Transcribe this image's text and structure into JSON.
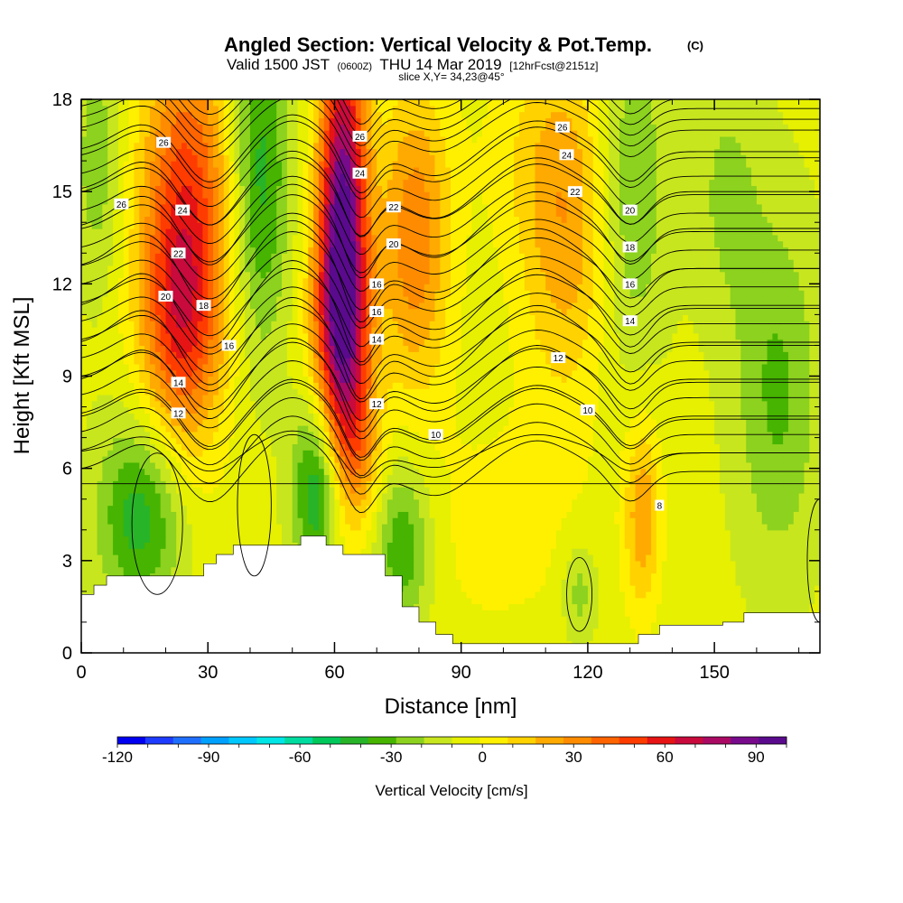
{
  "titles": {
    "main": "Angled Section: Vertical Velocity & Pot.Temp.",
    "main_badge": "(C)",
    "valid_prefix": "Valid 1500 JST",
    "valid_utc": "(0600Z)",
    "valid_date": "THU 14 Mar 2019",
    "valid_fcst": "[12hrFcst@2151z]",
    "slice": "slice X,Y= 34,23@45°"
  },
  "chart_data": {
    "type": "heatmap",
    "description_of_fields": "filled: vertical velocity (cm/s); contours: potential temperature (C)",
    "xlabel": "Distance [nm]",
    "ylabel": "Height [Kft MSL]",
    "xlim": [
      0,
      175
    ],
    "ylim": [
      0,
      18
    ],
    "x_ticks": [
      0,
      30,
      60,
      90,
      120,
      150
    ],
    "x_tick_labels": [
      "0",
      "30",
      "60",
      "90",
      "120",
      "150"
    ],
    "y_ticks": [
      0,
      3,
      6,
      9,
      12,
      15,
      18
    ],
    "y_tick_labels": [
      "0",
      "3",
      "6",
      "9",
      "12",
      "15",
      "18"
    ],
    "colorbar": {
      "label": "Vertical Velocity [cm/s]",
      "min": -120,
      "max": 100,
      "step": 10,
      "tick_values": [
        -120,
        -90,
        -60,
        -30,
        0,
        30,
        60,
        90
      ],
      "tick_labels": [
        "-120",
        "-90",
        "-60",
        "-30",
        "0",
        "30",
        "60",
        "90"
      ],
      "colors": [
        "#0000f0",
        "#1e3cff",
        "#1f6fff",
        "#00a0ff",
        "#00c8ff",
        "#00e6e6",
        "#00dca0",
        "#00c85a",
        "#28b428",
        "#46b400",
        "#8cd21e",
        "#c8e61e",
        "#e6f000",
        "#fff000",
        "#ffd200",
        "#ffaa00",
        "#ff8c00",
        "#ff6400",
        "#ff3c00",
        "#e61414",
        "#c80a3c",
        "#aa0a64",
        "#780a8c",
        "#5a0a8c"
      ]
    },
    "terrain_top": [
      [
        0,
        1.9
      ],
      [
        3,
        2.2
      ],
      [
        6,
        2.5
      ],
      [
        29,
        2.9
      ],
      [
        32,
        3.2
      ],
      [
        36,
        3.5
      ],
      [
        52,
        3.8
      ],
      [
        58,
        3.5
      ],
      [
        62,
        3.2
      ],
      [
        68,
        3.2
      ],
      [
        72,
        2.5
      ],
      [
        76,
        1.5
      ],
      [
        80,
        1.0
      ],
      [
        84,
        0.6
      ],
      [
        88,
        0.3
      ],
      [
        90,
        0.3
      ],
      [
        128,
        0.3
      ],
      [
        132,
        0.6
      ],
      [
        137,
        0.9
      ],
      [
        152,
        1.0
      ],
      [
        157,
        1.3
      ],
      [
        175,
        1.5
      ]
    ],
    "velocity_cells": [
      {
        "x": 25,
        "y": 14.0,
        "sx": 8,
        "sy": 4.5,
        "v": 65
      },
      {
        "x": 23,
        "y": 10.5,
        "sx": 6,
        "sy": 2.5,
        "v": 30
      },
      {
        "x": 62,
        "y": 14.5,
        "sx": 4,
        "sy": 4.5,
        "v": 100
      },
      {
        "x": 61,
        "y": 10.0,
        "sx": 5,
        "sy": 3.0,
        "v": 55
      },
      {
        "x": 66,
        "y": 6.5,
        "sx": 4,
        "sy": 2.0,
        "v": 25
      },
      {
        "x": 79,
        "y": 13.5,
        "sx": 6,
        "sy": 3.5,
        "v": 45
      },
      {
        "x": 115,
        "y": 14.0,
        "sx": 8,
        "sy": 4.0,
        "v": 35
      },
      {
        "x": 133,
        "y": 4.5,
        "sx": 3,
        "sy": 2.2,
        "v": 35
      },
      {
        "x": 98,
        "y": 4.0,
        "sx": 18,
        "sy": 3.0,
        "v": 10
      },
      {
        "x": 42,
        "y": 15.5,
        "sx": 5,
        "sy": 4.0,
        "v": -40
      },
      {
        "x": 56,
        "y": 5.5,
        "sx": 4,
        "sy": 2.2,
        "v": -50
      },
      {
        "x": 14,
        "y": 4.5,
        "sx": 7,
        "sy": 2.2,
        "v": -40
      },
      {
        "x": 76,
        "y": 3.5,
        "sx": 5,
        "sy": 2.0,
        "v": -35
      },
      {
        "x": 130,
        "y": 15.0,
        "sx": 6,
        "sy": 4.0,
        "v": -25
      },
      {
        "x": 165,
        "y": 8.5,
        "sx": 7,
        "sy": 4.0,
        "v": -25
      },
      {
        "x": 104,
        "y": 16.5,
        "sx": 10,
        "sy": 2.5,
        "v": 8
      },
      {
        "x": 153,
        "y": 15.0,
        "sx": 6,
        "sy": 3.0,
        "v": -15
      },
      {
        "x": 4,
        "y": 16.0,
        "sx": 4,
        "sy": 3.0,
        "v": -20
      },
      {
        "x": 118,
        "y": 2.0,
        "sx": 3,
        "sy": 1.2,
        "v": -20
      }
    ],
    "theta_contours": [
      {
        "label": "8",
        "base": 5.5,
        "bump": 0.0
      },
      {
        "label": "10",
        "base": 6.5,
        "bump": 0.6
      },
      {
        "label": "12",
        "base": 7.6,
        "bump": 1.0
      },
      {
        "label": "14",
        "base": 8.8,
        "bump": 1.2
      },
      {
        "label": "16",
        "base": 10.0,
        "bump": 1.3
      },
      {
        "label": "18",
        "base": 11.2,
        "bump": 1.3
      },
      {
        "label": "20",
        "base": 12.5,
        "bump": 1.3
      },
      {
        "label": "22",
        "base": 13.8,
        "bump": 1.2
      },
      {
        "label": "24",
        "base": 15.0,
        "bump": 1.1
      },
      {
        "label": "26",
        "base": 16.3,
        "bump": 1.0
      }
    ],
    "contour_label_positions": [
      {
        "label": "26",
        "x": 19.5,
        "y": 16.6
      },
      {
        "label": "26",
        "x": 66,
        "y": 16.8
      },
      {
        "label": "26",
        "x": 114,
        "y": 17.1
      },
      {
        "label": "26",
        "x": 9.5,
        "y": 14.6
      },
      {
        "label": "24",
        "x": 66,
        "y": 15.6
      },
      {
        "label": "24",
        "x": 115,
        "y": 16.2
      },
      {
        "label": "24",
        "x": 24,
        "y": 14.4
      },
      {
        "label": "22",
        "x": 74,
        "y": 14.5
      },
      {
        "label": "22",
        "x": 117,
        "y": 15.0
      },
      {
        "label": "22",
        "x": 23,
        "y": 13.0
      },
      {
        "label": "20",
        "x": 74,
        "y": 13.3
      },
      {
        "label": "20",
        "x": 130,
        "y": 14.4
      },
      {
        "label": "20",
        "x": 20,
        "y": 11.6
      },
      {
        "label": "18",
        "x": 130,
        "y": 13.2
      },
      {
        "label": "18",
        "x": 29,
        "y": 11.3
      },
      {
        "label": "16",
        "x": 70,
        "y": 12.0
      },
      {
        "label": "16",
        "x": 130,
        "y": 12.0
      },
      {
        "label": "16",
        "x": 70,
        "y": 11.1
      },
      {
        "label": "16",
        "x": 35,
        "y": 10.0
      },
      {
        "label": "14",
        "x": 70,
        "y": 10.2
      },
      {
        "label": "14",
        "x": 130,
        "y": 10.8
      },
      {
        "label": "14",
        "x": 23,
        "y": 8.8
      },
      {
        "label": "12",
        "x": 113,
        "y": 9.6
      },
      {
        "label": "12",
        "x": 23,
        "y": 7.8
      },
      {
        "label": "12",
        "x": 70,
        "y": 8.1
      },
      {
        "label": "10",
        "x": 84,
        "y": 7.1
      },
      {
        "label": "10",
        "x": 120,
        "y": 7.9
      },
      {
        "label": "8",
        "x": 137,
        "y": 4.8
      }
    ]
  }
}
